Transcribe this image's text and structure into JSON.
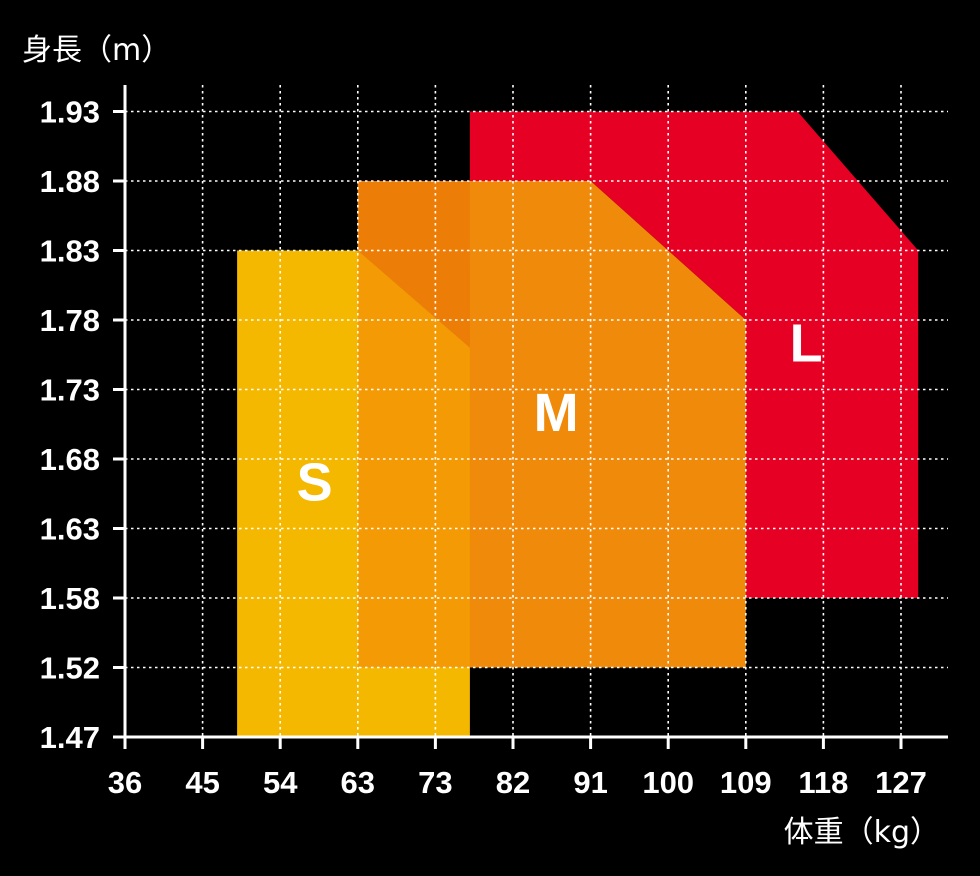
{
  "chart_data": {
    "type": "area",
    "title": "",
    "xlabel": "体重（kg）",
    "ylabel": "身長（m）",
    "x_ticks": [
      36,
      45,
      54,
      63,
      73,
      82,
      91,
      100,
      109,
      118,
      127
    ],
    "y_ticks": [
      1.47,
      1.52,
      1.58,
      1.63,
      1.68,
      1.73,
      1.78,
      1.83,
      1.88,
      1.93
    ],
    "grid": true,
    "grid_style": "dotted",
    "background": "#000000",
    "series": [
      {
        "name": "L",
        "color": "#e60023",
        "polygon": [
          [
            77,
            1.93
          ],
          [
            115,
            1.93
          ],
          [
            129,
            1.83
          ],
          [
            129,
            1.58
          ],
          [
            109,
            1.58
          ],
          [
            109,
            1.78
          ],
          [
            91,
            1.88
          ],
          [
            77,
            1.88
          ]
        ]
      },
      {
        "name": "M",
        "color": "#f08a0a",
        "polygon": [
          [
            63,
            1.88
          ],
          [
            91,
            1.88
          ],
          [
            109,
            1.78
          ],
          [
            109,
            1.52
          ],
          [
            77,
            1.52
          ],
          [
            77,
            1.76
          ],
          [
            63,
            1.83
          ]
        ]
      },
      {
        "name": "S",
        "color": "#f5b800",
        "polygon": [
          [
            49,
            1.83
          ],
          [
            63,
            1.83
          ],
          [
            77,
            1.76
          ],
          [
            77,
            1.47
          ],
          [
            49,
            1.47
          ]
        ]
      }
    ],
    "overlaps": [
      {
        "color": "#ec7e08",
        "polygon": [
          [
            63,
            1.88
          ],
          [
            77,
            1.88
          ],
          [
            77,
            1.76
          ],
          [
            63,
            1.83
          ]
        ]
      },
      {
        "color": "#f39a05",
        "polygon": [
          [
            63,
            1.83
          ],
          [
            77,
            1.76
          ],
          [
            77,
            1.52
          ],
          [
            63,
            1.52
          ]
        ]
      }
    ]
  }
}
